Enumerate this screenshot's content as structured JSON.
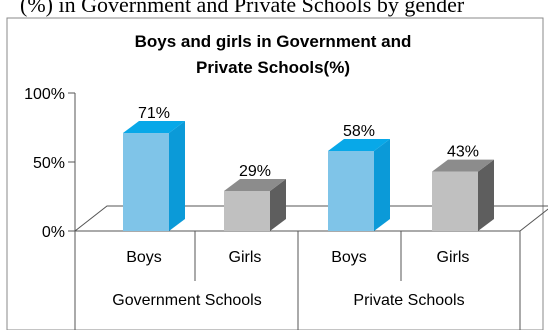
{
  "clipped_caption": "(%) in Government and Private Schools by gender",
  "chart_data": {
    "type": "bar",
    "title": "Boys and girls in Government and Private Schools(%)",
    "title_lines": [
      "Boys and girls in Government and",
      "Private Schools(%)"
    ],
    "ylim": [
      0,
      100
    ],
    "yticks": [
      "0%",
      "50%",
      "100%"
    ],
    "ytick_values": [
      0,
      50,
      100
    ],
    "grid": false,
    "categories": [
      "Boys",
      "Girls",
      "Boys",
      "Girls"
    ],
    "groups": [
      "Government Schools",
      "Private Schools"
    ],
    "values": [
      71,
      29,
      58,
      43
    ],
    "data_labels": [
      "71%",
      "29%",
      "58%",
      "43%"
    ],
    "bar_colors": [
      "#7fc4e8",
      "#c0c0c0",
      "#7fc4e8",
      "#c0c0c0"
    ],
    "bar_side_colors": [
      "#0b9ad8",
      "#5e5e5e",
      "#0b9ad8",
      "#5e5e5e"
    ],
    "bar_top_colors": [
      "#08a8e8",
      "#8c8c8c",
      "#08a8e8",
      "#8c8c8c"
    ]
  }
}
